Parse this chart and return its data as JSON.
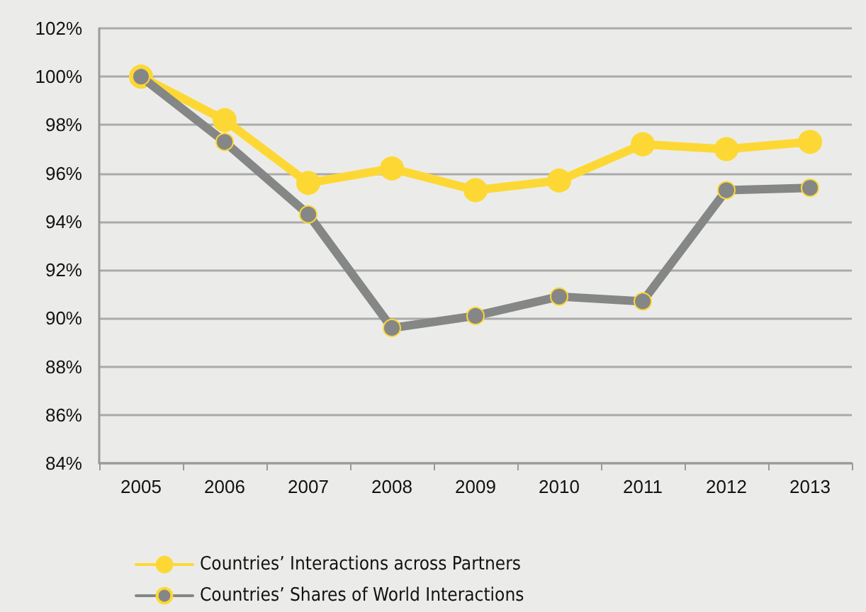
{
  "chart_data": {
    "type": "line",
    "categories": [
      "2005",
      "2006",
      "2007",
      "2008",
      "2009",
      "2010",
      "2011",
      "2012",
      "2013"
    ],
    "series": [
      {
        "name": "Countries’ Interactions across Partners",
        "color": "#fdd835",
        "values": [
          100,
          98.2,
          95.6,
          96.2,
          95.3,
          95.7,
          97.2,
          97.0,
          97.3
        ]
      },
      {
        "name": "Countries’ Shares of World Interactions",
        "color": "#858786",
        "values": [
          100,
          97.3,
          94.3,
          89.6,
          90.1,
          90.9,
          90.7,
          95.3,
          95.4
        ]
      }
    ],
    "ylim": [
      84,
      102
    ],
    "yticks": [
      {
        "value": 84,
        "label": "84%"
      },
      {
        "value": 86,
        "label": "86%"
      },
      {
        "value": 88,
        "label": "88%"
      },
      {
        "value": 90,
        "label": "90%"
      },
      {
        "value": 92,
        "label": "92%"
      },
      {
        "value": 94,
        "label": "94%"
      },
      {
        "value": 96,
        "label": "96%"
      },
      {
        "value": 98,
        "label": "98%"
      },
      {
        "value": 100,
        "label": "100%"
      },
      {
        "value": 102,
        "label": "102%"
      }
    ],
    "grid": "y",
    "legend": "bottom left",
    "marker": "circle",
    "line_style": "solid"
  }
}
